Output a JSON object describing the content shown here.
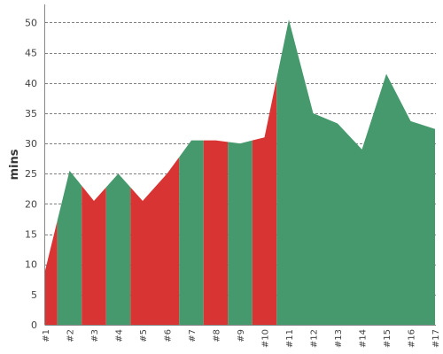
{
  "chart_data": {
    "type": "area",
    "title": "",
    "xlabel": "",
    "ylabel": "mins",
    "ylim": [
      0,
      53
    ],
    "yticks": [
      0,
      5,
      10,
      15,
      20,
      25,
      30,
      35,
      40,
      45,
      50
    ],
    "grid": true,
    "legend": "none",
    "categories": [
      "#1",
      "#2",
      "#3",
      "#4",
      "#5",
      "#6",
      "#7",
      "#8",
      "#9",
      "#10",
      "#11",
      "#12",
      "#13",
      "#14",
      "#15",
      "#16",
      "#17"
    ],
    "points": [
      {
        "x": "#1",
        "y": 9
      },
      {
        "x": "#2",
        "y": 25.5
      },
      {
        "x": "#3",
        "y": 20.5
      },
      {
        "x": "#4",
        "y": 25
      },
      {
        "x": "#5",
        "y": 20.5
      },
      {
        "x": "#6",
        "y": 25
      },
      {
        "x": "#7",
        "y": 30.5
      },
      {
        "x": "#8",
        "y": 30.5
      },
      {
        "x": "#9",
        "y": 30
      },
      {
        "x": "#10",
        "y": 31
      },
      {
        "x": "#11",
        "y": 50.5
      },
      {
        "x": "#12",
        "y": 35
      },
      {
        "x": "#13",
        "y": 33.3
      },
      {
        "x": "#14",
        "y": 29
      },
      {
        "x": "#15",
        "y": 41.5
      },
      {
        "x": "#16",
        "y": 33.7
      },
      {
        "x": "#17",
        "y": 32.4
      }
    ],
    "segments": [
      {
        "from": 0,
        "to": 0.5,
        "color": "red"
      },
      {
        "from": 0.5,
        "to": 1.5,
        "color": "green"
      },
      {
        "from": 1.5,
        "to": 2.5,
        "color": "red"
      },
      {
        "from": 2.5,
        "to": 3.5,
        "color": "green"
      },
      {
        "from": 3.5,
        "to": 5.5,
        "color": "red"
      },
      {
        "from": 5.5,
        "to": 6.5,
        "color": "green"
      },
      {
        "from": 6.5,
        "to": 7.5,
        "color": "red"
      },
      {
        "from": 7.5,
        "to": 8.5,
        "color": "green"
      },
      {
        "from": 8.5,
        "to": 9.5,
        "color": "red"
      },
      {
        "from": 9.5,
        "to": 16,
        "color": "green"
      }
    ],
    "colors": {
      "green": "#45996c",
      "red": "#d93434"
    }
  }
}
